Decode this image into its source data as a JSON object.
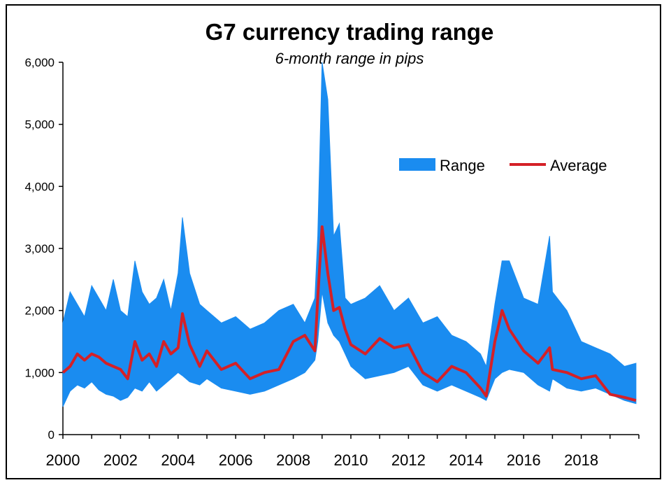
{
  "chart_data": {
    "type": "area",
    "title": "G7 currency trading range",
    "subtitle": "6-month range in pips",
    "xlabel": "",
    "ylabel": "",
    "xlim": [
      2000,
      2020
    ],
    "ylim": [
      0,
      6000
    ],
    "yticks": [
      "0",
      "1,000",
      "2,000",
      "3,000",
      "4,000",
      "5,000",
      "6,000"
    ],
    "ytick_values": [
      0,
      1000,
      2000,
      3000,
      4000,
      5000,
      6000
    ],
    "xticks": [
      "2000",
      "2002",
      "2004",
      "2006",
      "2008",
      "2010",
      "2012",
      "2014",
      "2016",
      "2018"
    ],
    "xtick_values": [
      2000,
      2002,
      2004,
      2006,
      2008,
      2010,
      2012,
      2014,
      2016,
      2018
    ],
    "legend_position": "upper-right",
    "series": [
      {
        "name": "Range",
        "kind": "band",
        "color": "#1a8cf0",
        "x": [
          2000.0,
          2000.25,
          2000.5,
          2000.75,
          2001.0,
          2001.25,
          2001.5,
          2001.75,
          2002.0,
          2002.25,
          2002.5,
          2002.75,
          2003.0,
          2003.25,
          2003.5,
          2003.75,
          2004.0,
          2004.15,
          2004.4,
          2004.75,
          2005.0,
          2005.5,
          2006.0,
          2006.5,
          2007.0,
          2007.5,
          2008.0,
          2008.4,
          2008.75,
          2008.85,
          2009.0,
          2009.2,
          2009.4,
          2009.6,
          2009.8,
          2010.0,
          2010.5,
          2011.0,
          2011.5,
          2012.0,
          2012.5,
          2013.0,
          2013.5,
          2014.0,
          2014.5,
          2014.7,
          2015.0,
          2015.25,
          2015.5,
          2016.0,
          2016.5,
          2016.9,
          2017.0,
          2017.5,
          2018.0,
          2018.5,
          2019.0,
          2019.5,
          2019.9
        ],
        "low": [
          450,
          700,
          800,
          750,
          850,
          720,
          650,
          620,
          550,
          600,
          750,
          700,
          850,
          700,
          800,
          900,
          1000,
          950,
          850,
          800,
          900,
          750,
          700,
          650,
          700,
          800,
          900,
          1000,
          1200,
          1500,
          2300,
          1800,
          1600,
          1500,
          1300,
          1100,
          900,
          950,
          1000,
          1100,
          800,
          700,
          800,
          700,
          600,
          550,
          900,
          1000,
          1050,
          1000,
          800,
          700,
          900,
          750,
          700,
          750,
          650,
          550,
          500
        ],
        "high": [
          1800,
          2300,
          2100,
          1900,
          2400,
          2200,
          2000,
          2500,
          2000,
          1900,
          2800,
          2300,
          2100,
          2200,
          2500,
          2000,
          2600,
          3500,
          2600,
          2100,
          2000,
          1800,
          1900,
          1700,
          1800,
          2000,
          2100,
          1800,
          2200,
          3200,
          6000,
          5400,
          3200,
          3400,
          2200,
          2100,
          2200,
          2400,
          2000,
          2200,
          1800,
          1900,
          1600,
          1500,
          1300,
          1100,
          2100,
          2800,
          2800,
          2200,
          2100,
          3200,
          2300,
          2000,
          1500,
          1400,
          1300,
          1100,
          1150
        ]
      },
      {
        "name": "Average",
        "kind": "line",
        "color": "#d42027",
        "x": [
          2000.0,
          2000.25,
          2000.5,
          2000.75,
          2001.0,
          2001.25,
          2001.5,
          2001.75,
          2002.0,
          2002.25,
          2002.5,
          2002.75,
          2003.0,
          2003.25,
          2003.5,
          2003.75,
          2004.0,
          2004.15,
          2004.4,
          2004.75,
          2005.0,
          2005.5,
          2006.0,
          2006.5,
          2007.0,
          2007.5,
          2008.0,
          2008.4,
          2008.75,
          2008.85,
          2009.0,
          2009.2,
          2009.4,
          2009.6,
          2009.8,
          2010.0,
          2010.5,
          2011.0,
          2011.5,
          2012.0,
          2012.5,
          2013.0,
          2013.5,
          2014.0,
          2014.5,
          2014.7,
          2015.0,
          2015.25,
          2015.5,
          2016.0,
          2016.5,
          2016.9,
          2017.0,
          2017.5,
          2018.0,
          2018.5,
          2019.0,
          2019.5,
          2019.9
        ],
        "y": [
          1000,
          1100,
          1300,
          1200,
          1300,
          1250,
          1150,
          1100,
          1050,
          900,
          1500,
          1200,
          1300,
          1100,
          1500,
          1300,
          1400,
          1950,
          1450,
          1100,
          1350,
          1050,
          1150,
          900,
          1000,
          1050,
          1500,
          1600,
          1350,
          2200,
          3350,
          2600,
          2000,
          2050,
          1700,
          1450,
          1300,
          1550,
          1400,
          1450,
          1000,
          850,
          1100,
          1000,
          750,
          620,
          1500,
          2000,
          1700,
          1350,
          1150,
          1400,
          1050,
          1000,
          900,
          950,
          650,
          600,
          550
        ]
      }
    ]
  }
}
